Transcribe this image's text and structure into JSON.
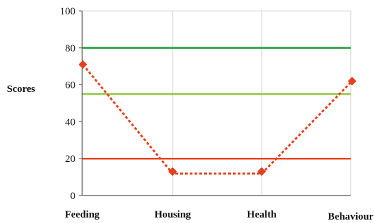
{
  "chart_data": {
    "type": "line",
    "title": "",
    "xlabel": "",
    "ylabel": "Scores",
    "ylim": [
      0,
      100
    ],
    "yticks": [
      "0",
      "20",
      "40",
      "60",
      "80",
      "100"
    ],
    "grid": "vertical",
    "categories": [
      "Feeding",
      "Housing",
      "Health",
      "Behaviour"
    ],
    "series": [
      {
        "values": [
          71,
          13,
          13,
          62
        ],
        "color": "#e8401c",
        "line_style": "dotted",
        "marker": "diamond"
      }
    ],
    "reference_lines": [
      {
        "value": 80,
        "color": "#1e9a3a"
      },
      {
        "value": 55,
        "color": "#8cc63f"
      },
      {
        "value": 20,
        "color": "#e8401c"
      }
    ]
  }
}
